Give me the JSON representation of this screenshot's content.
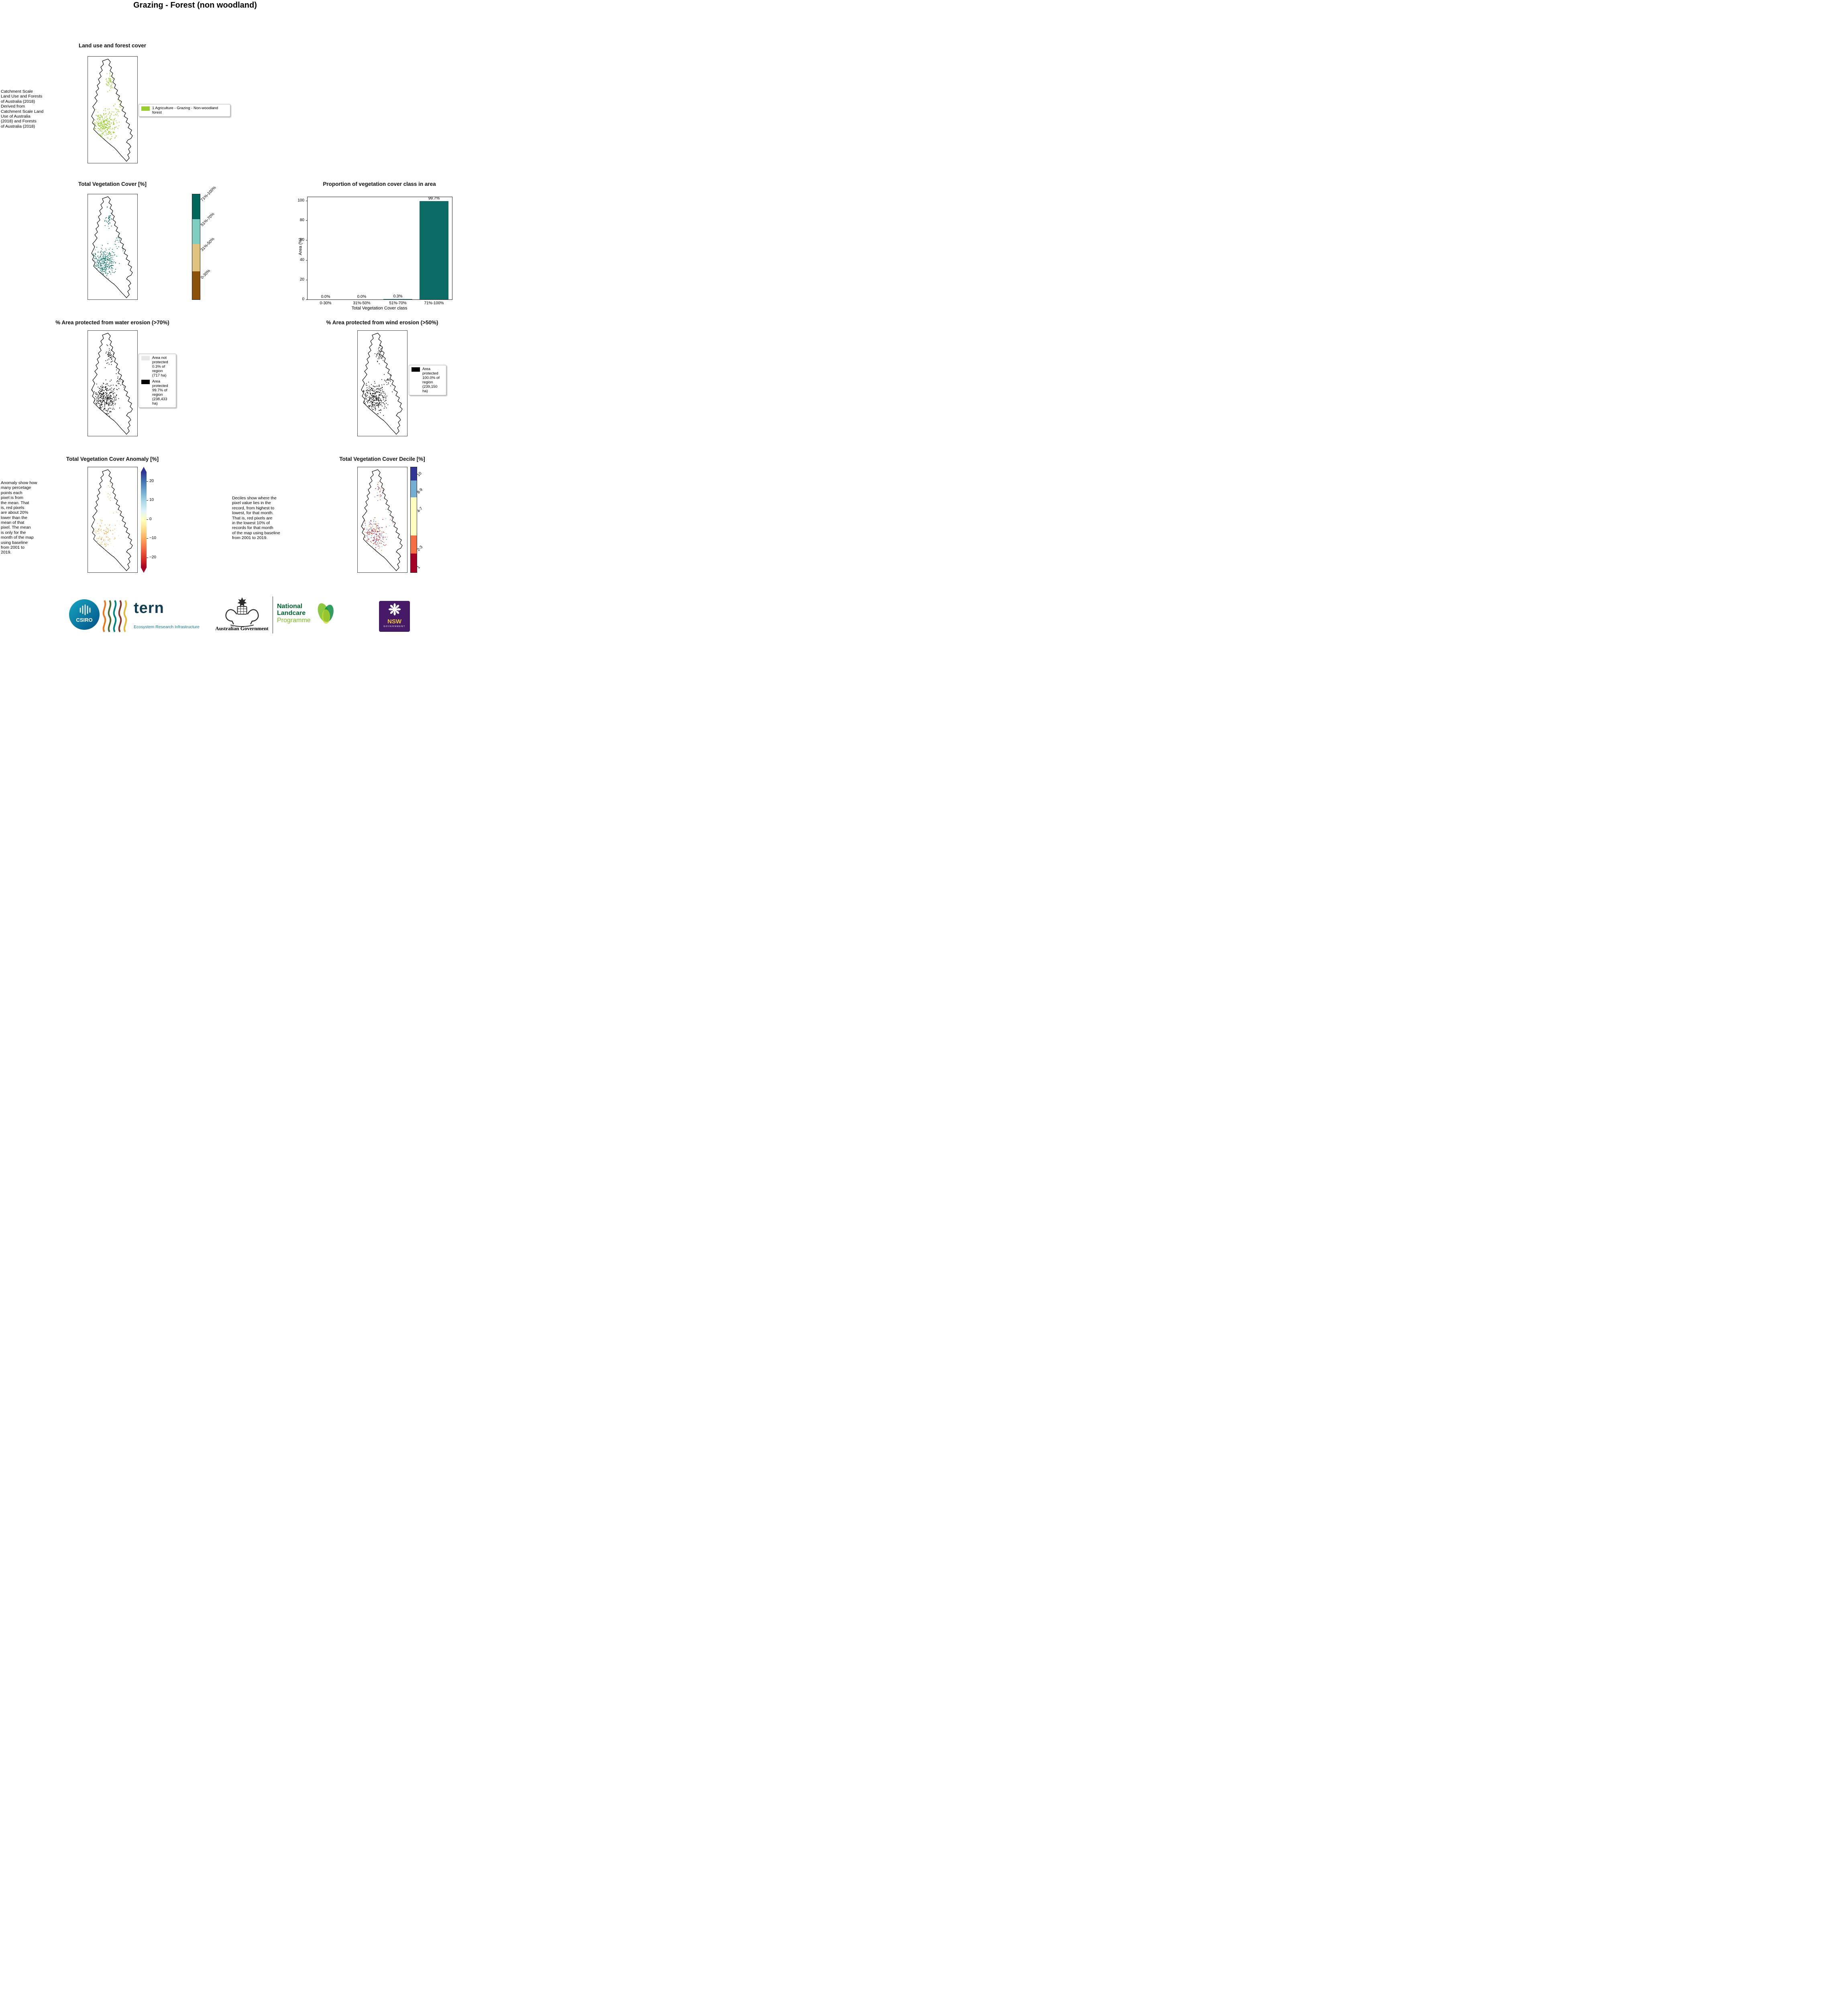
{
  "page_title": "Grazing - Forest (non woodland)",
  "panels": {
    "land_use": {
      "title": "Land use and forest cover",
      "side_note": " Catchment Scale\nLand Use and Forests\nof Australia (2018)\nDerived from\nCatchment Scale Land\nUse of Australia\n(2018) and Forests\nof Australia (2018)",
      "legend": {
        "label": "1 Agriculture - Grazing - Non-woodland forest",
        "color": "#9acd32"
      }
    },
    "veg_cover": {
      "title": "Total Vegetation Cover [%]",
      "classes": [
        {
          "label": "71%-100%",
          "color": "#01665e"
        },
        {
          "label": "51%-70%",
          "color": "#80cdc1"
        },
        {
          "label": "31%-50%",
          "color": "#dfc27d"
        },
        {
          "label": "0-30%",
          "color": "#8c510a"
        }
      ]
    },
    "water_erosion": {
      "title": "% Area protected from water erosion (>70%)",
      "legend": [
        {
          "label": "Area not protected 0.3% of region (717 ha)",
          "color": "#e6e6e6"
        },
        {
          "label": "Area protected 99.7% of region (238,433 ha)",
          "color": "#000000"
        }
      ]
    },
    "wind_erosion": {
      "title": "% Area protected from wind erosion (>50%)",
      "legend": [
        {
          "label": "Area protected 100.0% of region (239,150 ha)",
          "color": "#000000"
        }
      ]
    },
    "anomaly": {
      "title": "Total Vegetation Cover Anomaly [%]",
      "side_note": "Anomaly show how\nmany percetage\npoints each\npixel is from\nthe mean. That\nis, red pixels\nare about 20%\nlower than the\nmean of that\npixel. The mean\nis only for the\nmonth of the map\nusing baseline\nfrom 2001 to\n2019.",
      "ticks": [
        "20",
        "10",
        "0",
        "−10",
        "−20"
      ],
      "colormap_ends": [
        "#313695",
        "#ffffbf",
        "#a50026"
      ]
    },
    "decile": {
      "title": "Total Vegetation Cover Decile [%]",
      "side_note": "Deciles show where the\npixel value lies in the\nrecord, from highest to\nlowest, for that month.\nThat is, red pixels are\nin the lowest 10% of\nrecords for that month\nof the map using baseline\nfrom 2001 to 2019.",
      "classes": [
        {
          "label": "10",
          "color": "#313695"
        },
        {
          "label": "8-9",
          "color": "#74add1"
        },
        {
          "label": "4-7",
          "color": "#ffffbf"
        },
        {
          "label": "2-3",
          "color": "#f46d43"
        },
        {
          "label": "1",
          "color": "#a50026"
        }
      ]
    }
  },
  "chart_data": {
    "type": "bar",
    "title": "Proportion of vegetation cover class in area",
    "categories": [
      "0-30%",
      "31%-50%",
      "51%-70%",
      "71%-100%"
    ],
    "values": [
      0.0,
      0.0,
      0.3,
      99.7
    ],
    "value_labels": [
      "0.0%",
      "0.0%",
      "0.3%",
      "99.7%"
    ],
    "xlabel": "Total Vegetation Cover class",
    "ylabel": "Area (%)",
    "ylim": [
      0,
      100
    ],
    "yticks": [
      0,
      20,
      40,
      60,
      80,
      100
    ],
    "bar_color": "#0c6b66",
    "legend_position": "none",
    "grid": false
  },
  "footer": {
    "csiro": "CSIRO",
    "tern": "tern",
    "tern_sub": "Ecosystem Research Infrastructure",
    "aus_gov": "Australian Government",
    "nlp": [
      "National",
      "Landcare",
      "Programme"
    ],
    "nsw": "NSW",
    "nsw_sub": "GOVERNMENT"
  }
}
